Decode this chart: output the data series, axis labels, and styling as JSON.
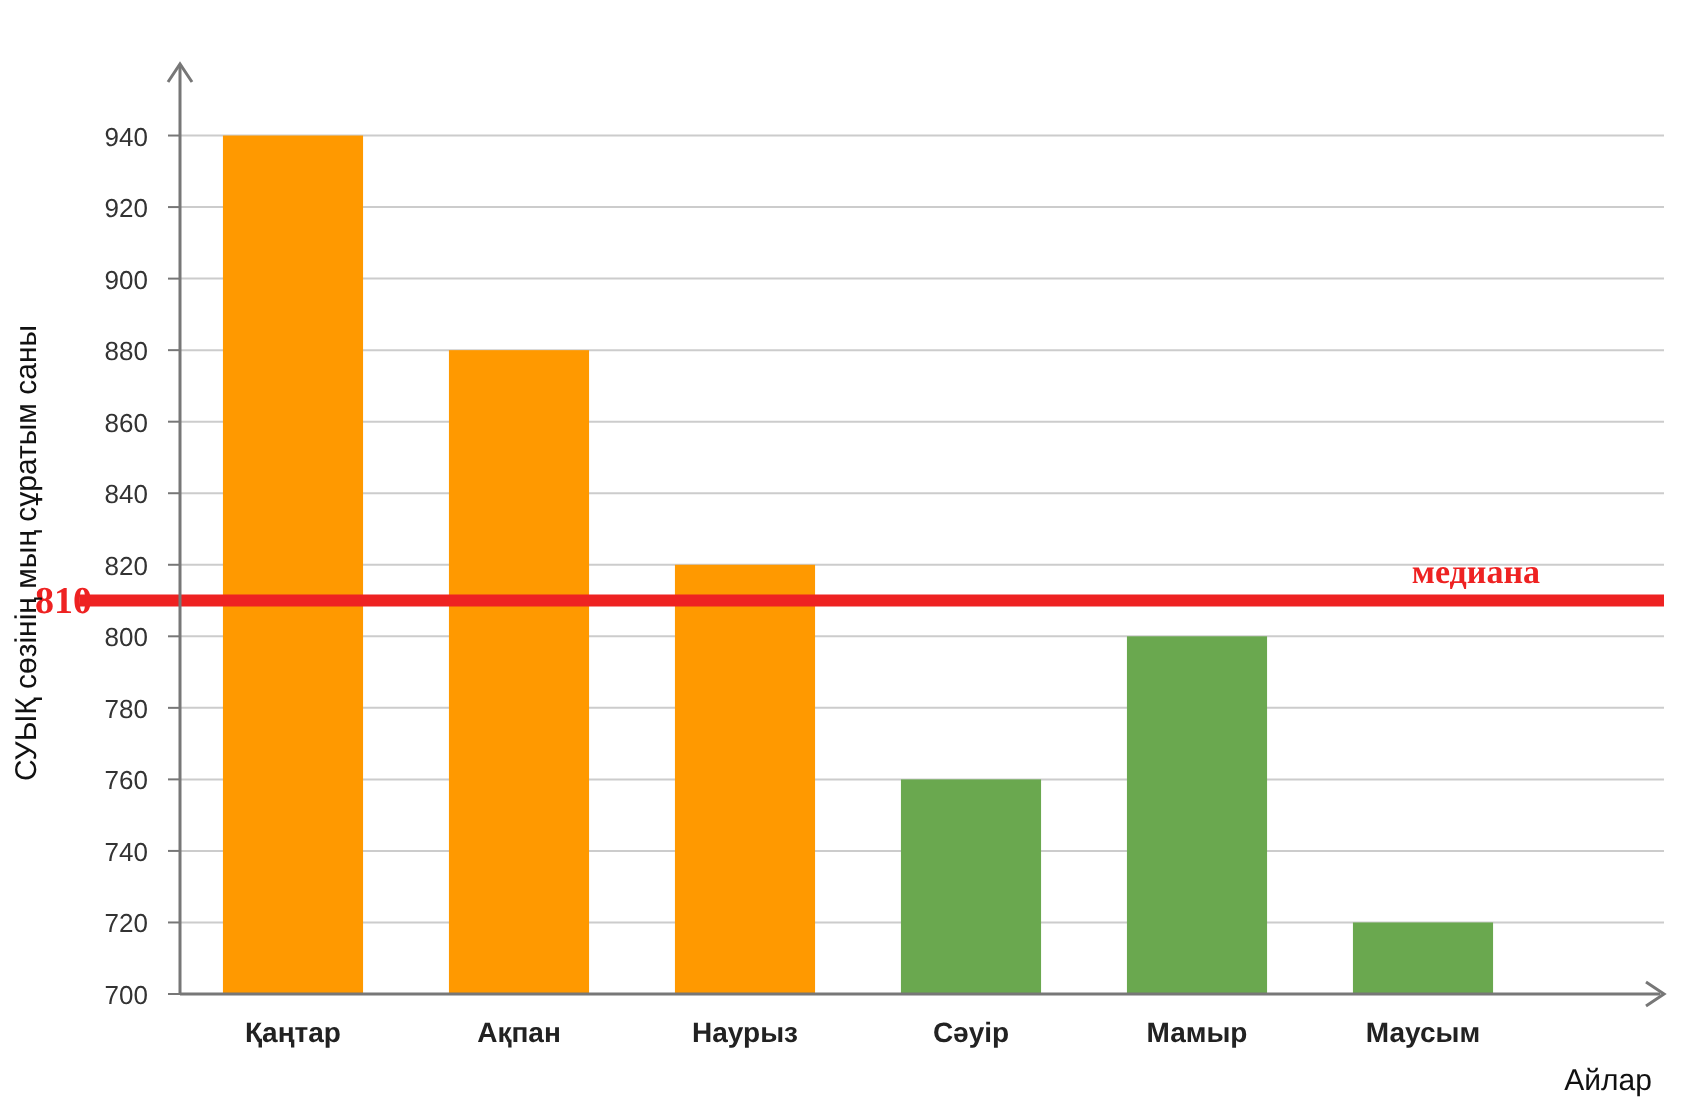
{
  "chart_data": {
    "type": "bar",
    "xlabel": "Айлар",
    "ylabel": "СУЫҚ сөзінің мың сұратым саны",
    "categories": [
      "Қаңтар",
      "Ақпан",
      "Наурыз",
      "Сәуір",
      "Мамыр",
      "Маусым"
    ],
    "values": [
      940,
      880,
      820,
      760,
      800,
      720
    ],
    "colors": [
      "#ff9900",
      "#ff9900",
      "#ff9900",
      "#6aa84f",
      "#6aa84f",
      "#6aa84f"
    ],
    "ylim": [
      700,
      960
    ],
    "yticks": [
      700,
      720,
      740,
      760,
      780,
      800,
      820,
      840,
      860,
      880,
      900,
      920,
      940
    ],
    "grid": "y",
    "annotations": [
      "810"
    ],
    "ref_lines": [
      {
        "axis": "y",
        "value": 810,
        "label": "медиана",
        "color": "#ee2222"
      }
    ]
  }
}
